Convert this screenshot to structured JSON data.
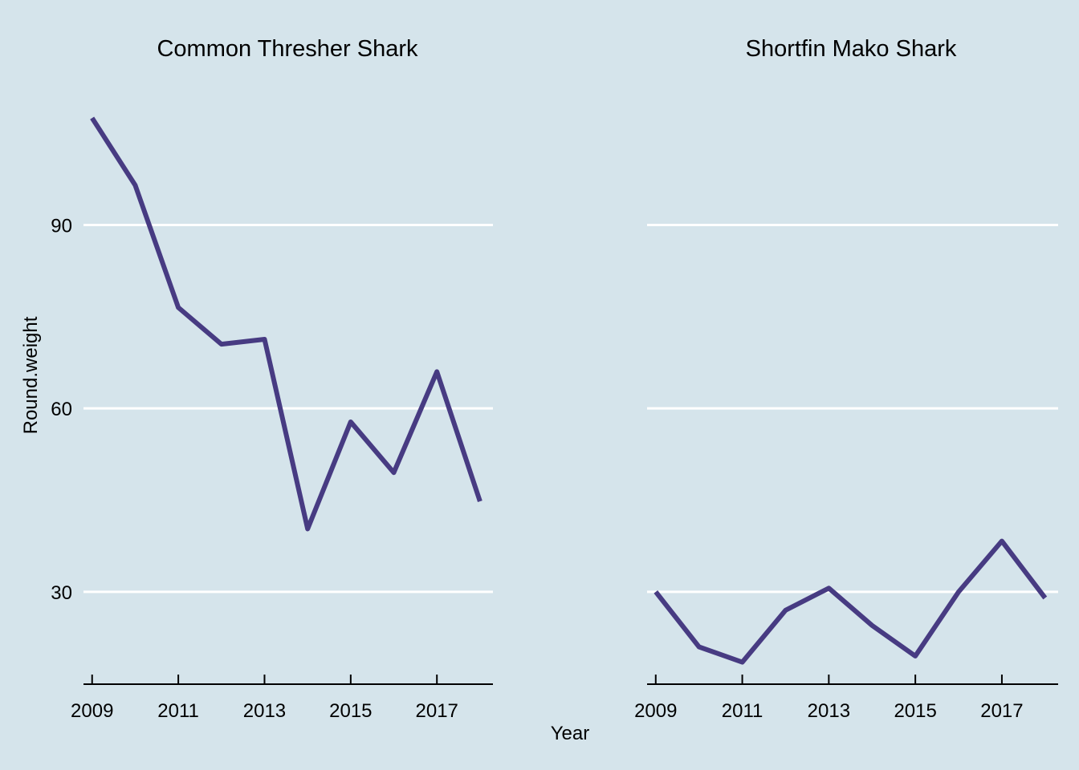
{
  "chart_data": {
    "type": "line",
    "xlabel": "Year",
    "ylabel": "Round.weight",
    "xlim": [
      2008.8,
      2018.3
    ],
    "ylim": [
      14.9,
      114.2
    ],
    "x_ticks": [
      2009,
      2011,
      2013,
      2015,
      2017
    ],
    "y_ticks": [
      30,
      60,
      90
    ],
    "grid": "horizontal major",
    "colors": {
      "background": "#d5e4eb",
      "line": "#473b82",
      "grid": "#ffffff",
      "axis": "#000000"
    },
    "panels": [
      {
        "title": "Common Thresher Shark",
        "x": [
          2009,
          2010,
          2011,
          2012,
          2013,
          2014,
          2015,
          2016,
          2017,
          2018
        ],
        "y": [
          107.5,
          96.5,
          76.5,
          70.5,
          71.3,
          40.3,
          57.8,
          49.5,
          66.0,
          44.8
        ]
      },
      {
        "title": "Shortfin Mako Shark",
        "x": [
          2009,
          2010,
          2011,
          2012,
          2013,
          2014,
          2015,
          2016,
          2017,
          2018
        ],
        "y": [
          30.0,
          21.0,
          18.5,
          27.0,
          30.6,
          24.5,
          19.5,
          30.0,
          38.3,
          29.0
        ]
      }
    ]
  }
}
